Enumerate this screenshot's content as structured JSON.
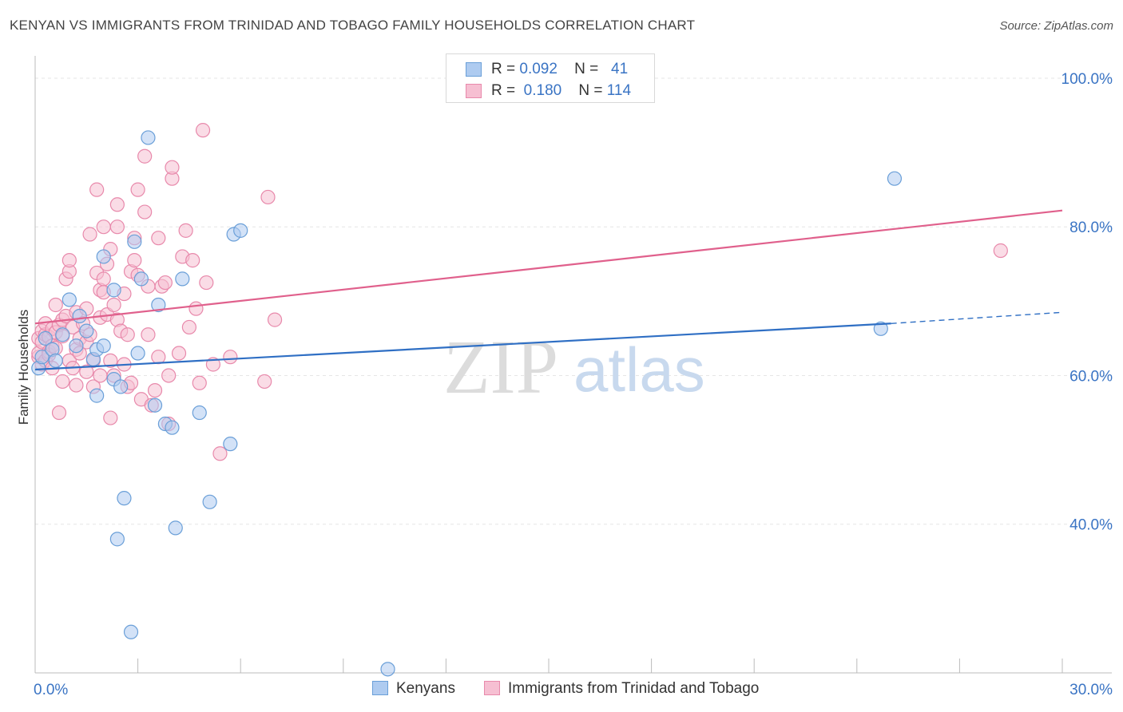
{
  "header": {
    "title": "KENYAN VS IMMIGRANTS FROM TRINIDAD AND TOBAGO FAMILY HOUSEHOLDS CORRELATION CHART",
    "source": "Source: ZipAtlas.com"
  },
  "watermark": {
    "zip": "ZIP",
    "atlas": "atlas"
  },
  "legend": {
    "rows": [
      {
        "r_label": "R =",
        "r_value": "0.092",
        "n_label": "N =",
        "n_value": "41"
      },
      {
        "r_label": "R =",
        "r_value": "0.180",
        "n_label": "N =",
        "n_value": "114"
      }
    ]
  },
  "colors": {
    "kenyan_fill": "#aecbf0",
    "kenyan_stroke": "#6a9fd8",
    "kenyan_line": "#2f6fc4",
    "tt_fill": "#f6bfd2",
    "tt_stroke": "#e889ab",
    "tt_line": "#e0608c",
    "axis_label": "#3a74c4",
    "grid": "#e6e6e6"
  },
  "chart_data": {
    "type": "scatter",
    "title": "KENYAN VS IMMIGRANTS FROM TRINIDAD AND TOBAGO FAMILY HOUSEHOLDS CORRELATION CHART",
    "xlabel": "",
    "ylabel": "Family Households",
    "xlim": [
      0,
      30
    ],
    "ylim": [
      20,
      103
    ],
    "x_tick_labels": [
      {
        "value": 0,
        "label": "0.0%"
      },
      {
        "value": 30,
        "label": "30.0%"
      }
    ],
    "y_tick_labels": [
      {
        "value": 100,
        "label": "100.0%"
      },
      {
        "value": 80,
        "label": "80.0%"
      },
      {
        "value": 60,
        "label": "60.0%"
      },
      {
        "value": 40,
        "label": "40.0%"
      }
    ],
    "grid": true,
    "legend_position": "bottom",
    "series": [
      {
        "name": "Kenyans",
        "r": 0.092,
        "n": 41,
        "trend": {
          "x0": 0,
          "y0": 60.8,
          "x1": 25.0,
          "y1": 67.0,
          "dash_to_x": 30,
          "dash_to_y": 68.5
        },
        "points": [
          [
            0.1,
            61.0
          ],
          [
            0.2,
            62.5
          ],
          [
            0.3,
            65.0
          ],
          [
            0.5,
            63.5
          ],
          [
            0.6,
            62.0
          ],
          [
            0.8,
            65.5
          ],
          [
            1.0,
            70.2
          ],
          [
            1.2,
            64.0
          ],
          [
            1.3,
            68.0
          ],
          [
            1.5,
            66.0
          ],
          [
            1.7,
            62.2
          ],
          [
            1.8,
            63.5
          ],
          [
            1.8,
            57.3
          ],
          [
            2.0,
            76.0
          ],
          [
            2.0,
            64.0
          ],
          [
            2.3,
            59.5
          ],
          [
            2.3,
            71.5
          ],
          [
            2.5,
            58.5
          ],
          [
            2.4,
            38.0
          ],
          [
            2.6,
            43.5
          ],
          [
            2.8,
            25.5
          ],
          [
            2.9,
            78.0
          ],
          [
            3.0,
            63.0
          ],
          [
            3.1,
            73.0
          ],
          [
            3.3,
            92.0
          ],
          [
            3.5,
            56.0
          ],
          [
            3.6,
            69.5
          ],
          [
            3.8,
            53.5
          ],
          [
            4.0,
            53.0
          ],
          [
            4.1,
            39.5
          ],
          [
            4.3,
            73.0
          ],
          [
            4.8,
            55.0
          ],
          [
            5.1,
            43.0
          ],
          [
            5.7,
            50.8
          ],
          [
            5.8,
            79.0
          ],
          [
            6.0,
            79.5
          ],
          [
            10.3,
            20.5
          ],
          [
            24.7,
            66.3
          ],
          [
            25.1,
            86.5
          ]
        ]
      },
      {
        "name": "Immigrants from Trinidad and Tobago",
        "r": 0.18,
        "n": 114,
        "trend": {
          "x0": 0,
          "y0": 67.0,
          "x1": 30,
          "y1": 82.2
        },
        "points": [
          [
            0.1,
            62.5
          ],
          [
            0.1,
            65.0
          ],
          [
            0.1,
            63.0
          ],
          [
            0.2,
            66.0
          ],
          [
            0.2,
            61.5
          ],
          [
            0.2,
            64.5
          ],
          [
            0.3,
            62.0
          ],
          [
            0.3,
            65.5
          ],
          [
            0.3,
            67.0
          ],
          [
            0.4,
            63.2
          ],
          [
            0.4,
            65.2
          ],
          [
            0.4,
            62.8
          ],
          [
            0.5,
            66.3
          ],
          [
            0.5,
            64.0
          ],
          [
            0.5,
            61.0
          ],
          [
            0.6,
            65.8
          ],
          [
            0.6,
            63.7
          ],
          [
            0.6,
            69.5
          ],
          [
            0.7,
            55.0
          ],
          [
            0.7,
            66.8
          ],
          [
            0.8,
            65.3
          ],
          [
            0.8,
            59.2
          ],
          [
            0.8,
            67.5
          ],
          [
            0.9,
            68.0
          ],
          [
            0.9,
            73.0
          ],
          [
            1.0,
            74.0
          ],
          [
            1.0,
            75.5
          ],
          [
            1.0,
            62.0
          ],
          [
            1.1,
            61.0
          ],
          [
            1.1,
            66.5
          ],
          [
            1.2,
            63.5
          ],
          [
            1.2,
            58.7
          ],
          [
            1.2,
            68.5
          ],
          [
            1.3,
            65.0
          ],
          [
            1.3,
            63.0
          ],
          [
            1.4,
            67.0
          ],
          [
            1.5,
            60.5
          ],
          [
            1.5,
            69.0
          ],
          [
            1.5,
            64.5
          ],
          [
            1.6,
            65.5
          ],
          [
            1.6,
            79.0
          ],
          [
            1.7,
            62.0
          ],
          [
            1.7,
            58.5
          ],
          [
            1.8,
            73.8
          ],
          [
            1.8,
            85.0
          ],
          [
            1.9,
            60.0
          ],
          [
            1.9,
            71.5
          ],
          [
            1.9,
            67.8
          ],
          [
            2.0,
            80.0
          ],
          [
            2.0,
            71.2
          ],
          [
            2.0,
            73.0
          ],
          [
            2.1,
            68.2
          ],
          [
            2.1,
            75.0
          ],
          [
            2.2,
            54.3
          ],
          [
            2.2,
            62.0
          ],
          [
            2.2,
            77.0
          ],
          [
            2.3,
            69.5
          ],
          [
            2.3,
            60.0
          ],
          [
            2.4,
            67.5
          ],
          [
            2.4,
            80.0
          ],
          [
            2.4,
            83.0
          ],
          [
            2.5,
            66.0
          ],
          [
            2.6,
            61.5
          ],
          [
            2.6,
            71.0
          ],
          [
            2.7,
            65.5
          ],
          [
            2.7,
            58.5
          ],
          [
            2.8,
            74.0
          ],
          [
            2.8,
            59.0
          ],
          [
            2.9,
            75.5
          ],
          [
            2.9,
            78.5
          ],
          [
            3.0,
            73.5
          ],
          [
            3.0,
            85.0
          ],
          [
            3.1,
            56.8
          ],
          [
            3.2,
            82.0
          ],
          [
            3.2,
            89.5
          ],
          [
            3.3,
            72.0
          ],
          [
            3.3,
            65.5
          ],
          [
            3.4,
            56.0
          ],
          [
            3.5,
            58.0
          ],
          [
            3.6,
            62.5
          ],
          [
            3.6,
            78.5
          ],
          [
            3.7,
            72.0
          ],
          [
            3.8,
            72.5
          ],
          [
            3.9,
            60.0
          ],
          [
            3.9,
            53.5
          ],
          [
            4.0,
            86.5
          ],
          [
            4.0,
            88.0
          ],
          [
            4.2,
            63.0
          ],
          [
            4.3,
            76.0
          ],
          [
            4.4,
            79.5
          ],
          [
            4.5,
            66.5
          ],
          [
            4.6,
            75.5
          ],
          [
            4.7,
            69.0
          ],
          [
            4.8,
            59.0
          ],
          [
            4.9,
            93.0
          ],
          [
            5.0,
            72.5
          ],
          [
            5.2,
            61.5
          ],
          [
            5.4,
            49.5
          ],
          [
            5.7,
            62.5
          ],
          [
            6.7,
            59.2
          ],
          [
            6.8,
            84.0
          ],
          [
            7.0,
            67.5
          ],
          [
            28.2,
            76.8
          ]
        ]
      }
    ]
  },
  "bottom_legend": {
    "kenyans": "Kenyans",
    "tt": "Immigrants from Trinidad and Tobago"
  }
}
